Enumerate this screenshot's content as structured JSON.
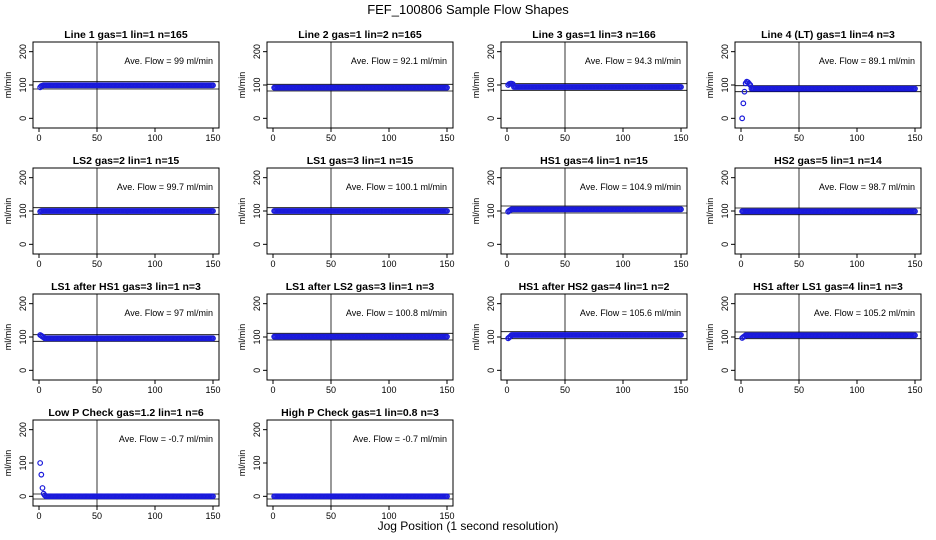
{
  "page": {
    "title": "FEF_100806  Sample Flow Shapes",
    "x_axis_label": "Jog Position (1 second resolution)"
  },
  "colors": {
    "points": "#1a1adb",
    "axes": "#000000"
  },
  "chart_data": [
    {
      "type": "scatter",
      "title": "Line 1 gas=1 lin=1 n=165",
      "ylabel": "ml/min",
      "xlim": [
        0,
        150
      ],
      "ylim": [
        -20,
        220
      ],
      "xticks": [
        "0",
        "50",
        "100",
        "150"
      ],
      "yticks": [
        "0",
        "100",
        "200"
      ],
      "annotation": "Ave. Flow =  99  ml/min",
      "ref_lines": [
        88,
        110
      ],
      "vline": 50,
      "series": {
        "x_start": 1,
        "x_end": 150,
        "x_step": 1,
        "init": [
          93,
          97,
          98
        ],
        "steady": 99
      }
    },
    {
      "type": "scatter",
      "title": "Line 2 gas=1 lin=2 n=165",
      "ylabel": "ml/min",
      "xlim": [
        0,
        150
      ],
      "ylim": [
        -20,
        220
      ],
      "xticks": [
        "0",
        "50",
        "100",
        "150"
      ],
      "yticks": [
        "0",
        "100",
        "200"
      ],
      "annotation": "Ave. Flow =  92.1  ml/min",
      "ref_lines": [
        82,
        102
      ],
      "vline": 50,
      "series": {
        "x_start": 1,
        "x_end": 150,
        "x_step": 1,
        "init": [
          92
        ],
        "steady": 92
      }
    },
    {
      "type": "scatter",
      "title": "Line 3 gas=1 lin=3 n=166",
      "ylabel": "ml/min",
      "xlim": [
        0,
        150
      ],
      "ylim": [
        -20,
        220
      ],
      "xticks": [
        "0",
        "50",
        "100",
        "150"
      ],
      "yticks": [
        "0",
        "100",
        "200"
      ],
      "annotation": "Ave. Flow =  94.3  ml/min",
      "ref_lines": [
        84,
        104
      ],
      "vline": 50,
      "series": {
        "x_start": 1,
        "x_end": 150,
        "x_step": 1,
        "init": [
          100,
          103,
          104,
          104,
          103
        ],
        "steady": 94
      }
    },
    {
      "type": "scatter",
      "title": "Line 4 (LT) gas=1 lin=4 n=3",
      "ylabel": "ml/min",
      "xlim": [
        0,
        150
      ],
      "ylim": [
        -20,
        220
      ],
      "xticks": [
        "0",
        "50",
        "100",
        "150"
      ],
      "yticks": [
        "0",
        "100",
        "200"
      ],
      "annotation": "Ave. Flow =  89.1  ml/min",
      "ref_lines": [
        80,
        98
      ],
      "vline": 50,
      "series": {
        "x_start": 1,
        "x_end": 150,
        "x_step": 1,
        "init": [
          0,
          45,
          80,
          105,
          110,
          108,
          104,
          100
        ],
        "steady": 89
      }
    },
    {
      "type": "scatter",
      "title": "LS2 gas=2 lin=1 n=15",
      "ylabel": "ml/min",
      "xlim": [
        0,
        150
      ],
      "ylim": [
        -20,
        220
      ],
      "xticks": [
        "0",
        "50",
        "100",
        "150"
      ],
      "yticks": [
        "0",
        "100",
        "200"
      ],
      "annotation": "Ave. Flow =  99.7  ml/min",
      "ref_lines": [
        90,
        110
      ],
      "vline": 50,
      "series": {
        "x_start": 1,
        "x_end": 150,
        "x_step": 1,
        "init": [
          98
        ],
        "steady": 100
      }
    },
    {
      "type": "scatter",
      "title": "LS1 gas=3 lin=1 n=15",
      "ylabel": "ml/min",
      "xlim": [
        0,
        150
      ],
      "ylim": [
        -20,
        220
      ],
      "xticks": [
        "0",
        "50",
        "100",
        "150"
      ],
      "yticks": [
        "0",
        "100",
        "200"
      ],
      "annotation": "Ave. Flow =  100.1  ml/min",
      "ref_lines": [
        90,
        110
      ],
      "vline": 50,
      "series": {
        "x_start": 1,
        "x_end": 150,
        "x_step": 1,
        "init": [
          100
        ],
        "steady": 100
      }
    },
    {
      "type": "scatter",
      "title": "HS1 gas=4 lin=1 n=15",
      "ylabel": "ml/min",
      "xlim": [
        0,
        150
      ],
      "ylim": [
        -20,
        220
      ],
      "xticks": [
        "0",
        "50",
        "100",
        "150"
      ],
      "yticks": [
        "0",
        "100",
        "200"
      ],
      "annotation": "Ave. Flow =  104.9  ml/min",
      "ref_lines": [
        94,
        115
      ],
      "vline": 50,
      "series": {
        "x_start": 1,
        "x_end": 150,
        "x_step": 1,
        "init": [
          98,
          101,
          103
        ],
        "steady": 105
      }
    },
    {
      "type": "scatter",
      "title": "HS2 gas=5 lin=1 n=14",
      "ylabel": "ml/min",
      "xlim": [
        0,
        150
      ],
      "ylim": [
        -20,
        220
      ],
      "xticks": [
        "0",
        "50",
        "100",
        "150"
      ],
      "yticks": [
        "0",
        "100",
        "200"
      ],
      "annotation": "Ave. Flow =  98.7  ml/min",
      "ref_lines": [
        89,
        109
      ],
      "vline": 50,
      "series": {
        "x_start": 1,
        "x_end": 150,
        "x_step": 1,
        "init": [
          99
        ],
        "steady": 99
      }
    },
    {
      "type": "scatter",
      "title": "LS1 after HS1 gas=3 lin=1 n=3",
      "ylabel": "ml/min",
      "xlim": [
        0,
        150
      ],
      "ylim": [
        -20,
        220
      ],
      "xticks": [
        "0",
        "50",
        "100",
        "150"
      ],
      "yticks": [
        "0",
        "100",
        "200"
      ],
      "annotation": "Ave. Flow =  97  ml/min",
      "ref_lines": [
        87,
        107
      ],
      "vline": 50,
      "series": {
        "x_start": 1,
        "x_end": 150,
        "x_step": 1,
        "init": [
          106,
          104,
          101,
          99
        ],
        "steady": 96
      }
    },
    {
      "type": "scatter",
      "title": "LS1 after LS2 gas=3 lin=1 n=3",
      "ylabel": "ml/min",
      "xlim": [
        0,
        150
      ],
      "ylim": [
        -20,
        220
      ],
      "xticks": [
        "0",
        "50",
        "100",
        "150"
      ],
      "yticks": [
        "0",
        "100",
        "200"
      ],
      "annotation": "Ave. Flow =  100.8  ml/min",
      "ref_lines": [
        91,
        111
      ],
      "vline": 50,
      "series": {
        "x_start": 1,
        "x_end": 150,
        "x_step": 1,
        "init": [
          101
        ],
        "steady": 101
      }
    },
    {
      "type": "scatter",
      "title": "HS1 after HS2 gas=4 lin=1 n=2",
      "ylabel": "ml/min",
      "xlim": [
        0,
        150
      ],
      "ylim": [
        -20,
        220
      ],
      "xticks": [
        "0",
        "50",
        "100",
        "150"
      ],
      "yticks": [
        "0",
        "100",
        "200"
      ],
      "annotation": "Ave. Flow =  105.6  ml/min",
      "ref_lines": [
        95,
        116
      ],
      "vline": 50,
      "series": {
        "x_start": 1,
        "x_end": 150,
        "x_step": 1,
        "init": [
          96,
          99,
          102
        ],
        "steady": 106
      }
    },
    {
      "type": "scatter",
      "title": "HS1 after LS1 gas=4 lin=1 n=3",
      "ylabel": "ml/min",
      "xlim": [
        0,
        150
      ],
      "ylim": [
        -20,
        220
      ],
      "xticks": [
        "0",
        "50",
        "100",
        "150"
      ],
      "yticks": [
        "0",
        "100",
        "200"
      ],
      "annotation": "Ave. Flow =  105.2  ml/min",
      "ref_lines": [
        95,
        115
      ],
      "vline": 50,
      "series": {
        "x_start": 1,
        "x_end": 150,
        "x_step": 1,
        "init": [
          97,
          100,
          102
        ],
        "steady": 105
      }
    },
    {
      "type": "scatter",
      "title": "Low P Check gas=1.2 lin=1 n=6",
      "ylabel": "ml/min",
      "xlim": [
        0,
        150
      ],
      "ylim": [
        -20,
        220
      ],
      "xticks": [
        "0",
        "50",
        "100",
        "150"
      ],
      "yticks": [
        "0",
        "100",
        "200"
      ],
      "annotation": "Ave. Flow =  -0.7  ml/min",
      "ref_lines": [
        -8,
        7
      ],
      "vline": 50,
      "series": {
        "x_start": 1,
        "x_end": 150,
        "x_step": 1,
        "init": [
          100,
          65,
          25,
          8,
          3
        ],
        "steady": 0
      }
    },
    {
      "type": "scatter",
      "title": "High P Check gas=1 lin=0.8 n=3",
      "ylabel": "ml/min",
      "xlim": [
        0,
        150
      ],
      "ylim": [
        -20,
        220
      ],
      "xticks": [
        "0",
        "50",
        "100",
        "150"
      ],
      "yticks": [
        "0",
        "100",
        "200"
      ],
      "annotation": "Ave. Flow =  -0.7  ml/min",
      "ref_lines": [
        -8,
        7
      ],
      "vline": 50,
      "series": {
        "x_start": 1,
        "x_end": 150,
        "x_step": 1,
        "init": [
          0
        ],
        "steady": 0
      }
    }
  ]
}
